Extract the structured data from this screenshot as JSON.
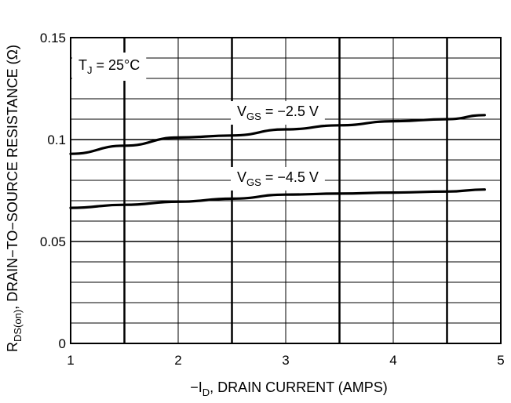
{
  "chart_data": {
    "type": "line",
    "xlabel": {
      "prefix": "−I",
      "sub": "D",
      "suffix": ", DRAIN CURRENT (AMPS)"
    },
    "ylabel": {
      "prefix": "R",
      "sub": "DS(on)",
      "suffix": ", DRAIN−TO−SOURCE RESISTANCE (Ω)"
    },
    "xlim": [
      1,
      5
    ],
    "ylim": [
      0,
      0.15
    ],
    "x_ticks": [
      "1",
      "2",
      "3",
      "4",
      "5"
    ],
    "y_ticks": [
      "0",
      "0.05",
      "0.1",
      "0.15"
    ],
    "grid": true,
    "annotation": {
      "prefix": "T",
      "sub": "J",
      "suffix": " = 25°C"
    },
    "series": [
      {
        "name": "V_GS = −2.5 V",
        "label": {
          "prefix": "V",
          "sub": "GS",
          "suffix": " = −2.5 V"
        },
        "x": [
          1.0,
          1.5,
          2.0,
          2.5,
          3.0,
          3.5,
          4.0,
          4.5,
          4.85
        ],
        "y": [
          0.093,
          0.097,
          0.101,
          0.102,
          0.105,
          0.107,
          0.109,
          0.11,
          0.112
        ]
      },
      {
        "name": "V_GS = −4.5 V",
        "label": {
          "prefix": "V",
          "sub": "GS",
          "suffix": " = −4.5 V"
        },
        "x": [
          1.0,
          1.5,
          2.0,
          2.5,
          3.0,
          3.5,
          4.0,
          4.5,
          4.85
        ],
        "y": [
          0.0665,
          0.068,
          0.0695,
          0.071,
          0.073,
          0.0735,
          0.074,
          0.0745,
          0.0755
        ]
      }
    ]
  }
}
